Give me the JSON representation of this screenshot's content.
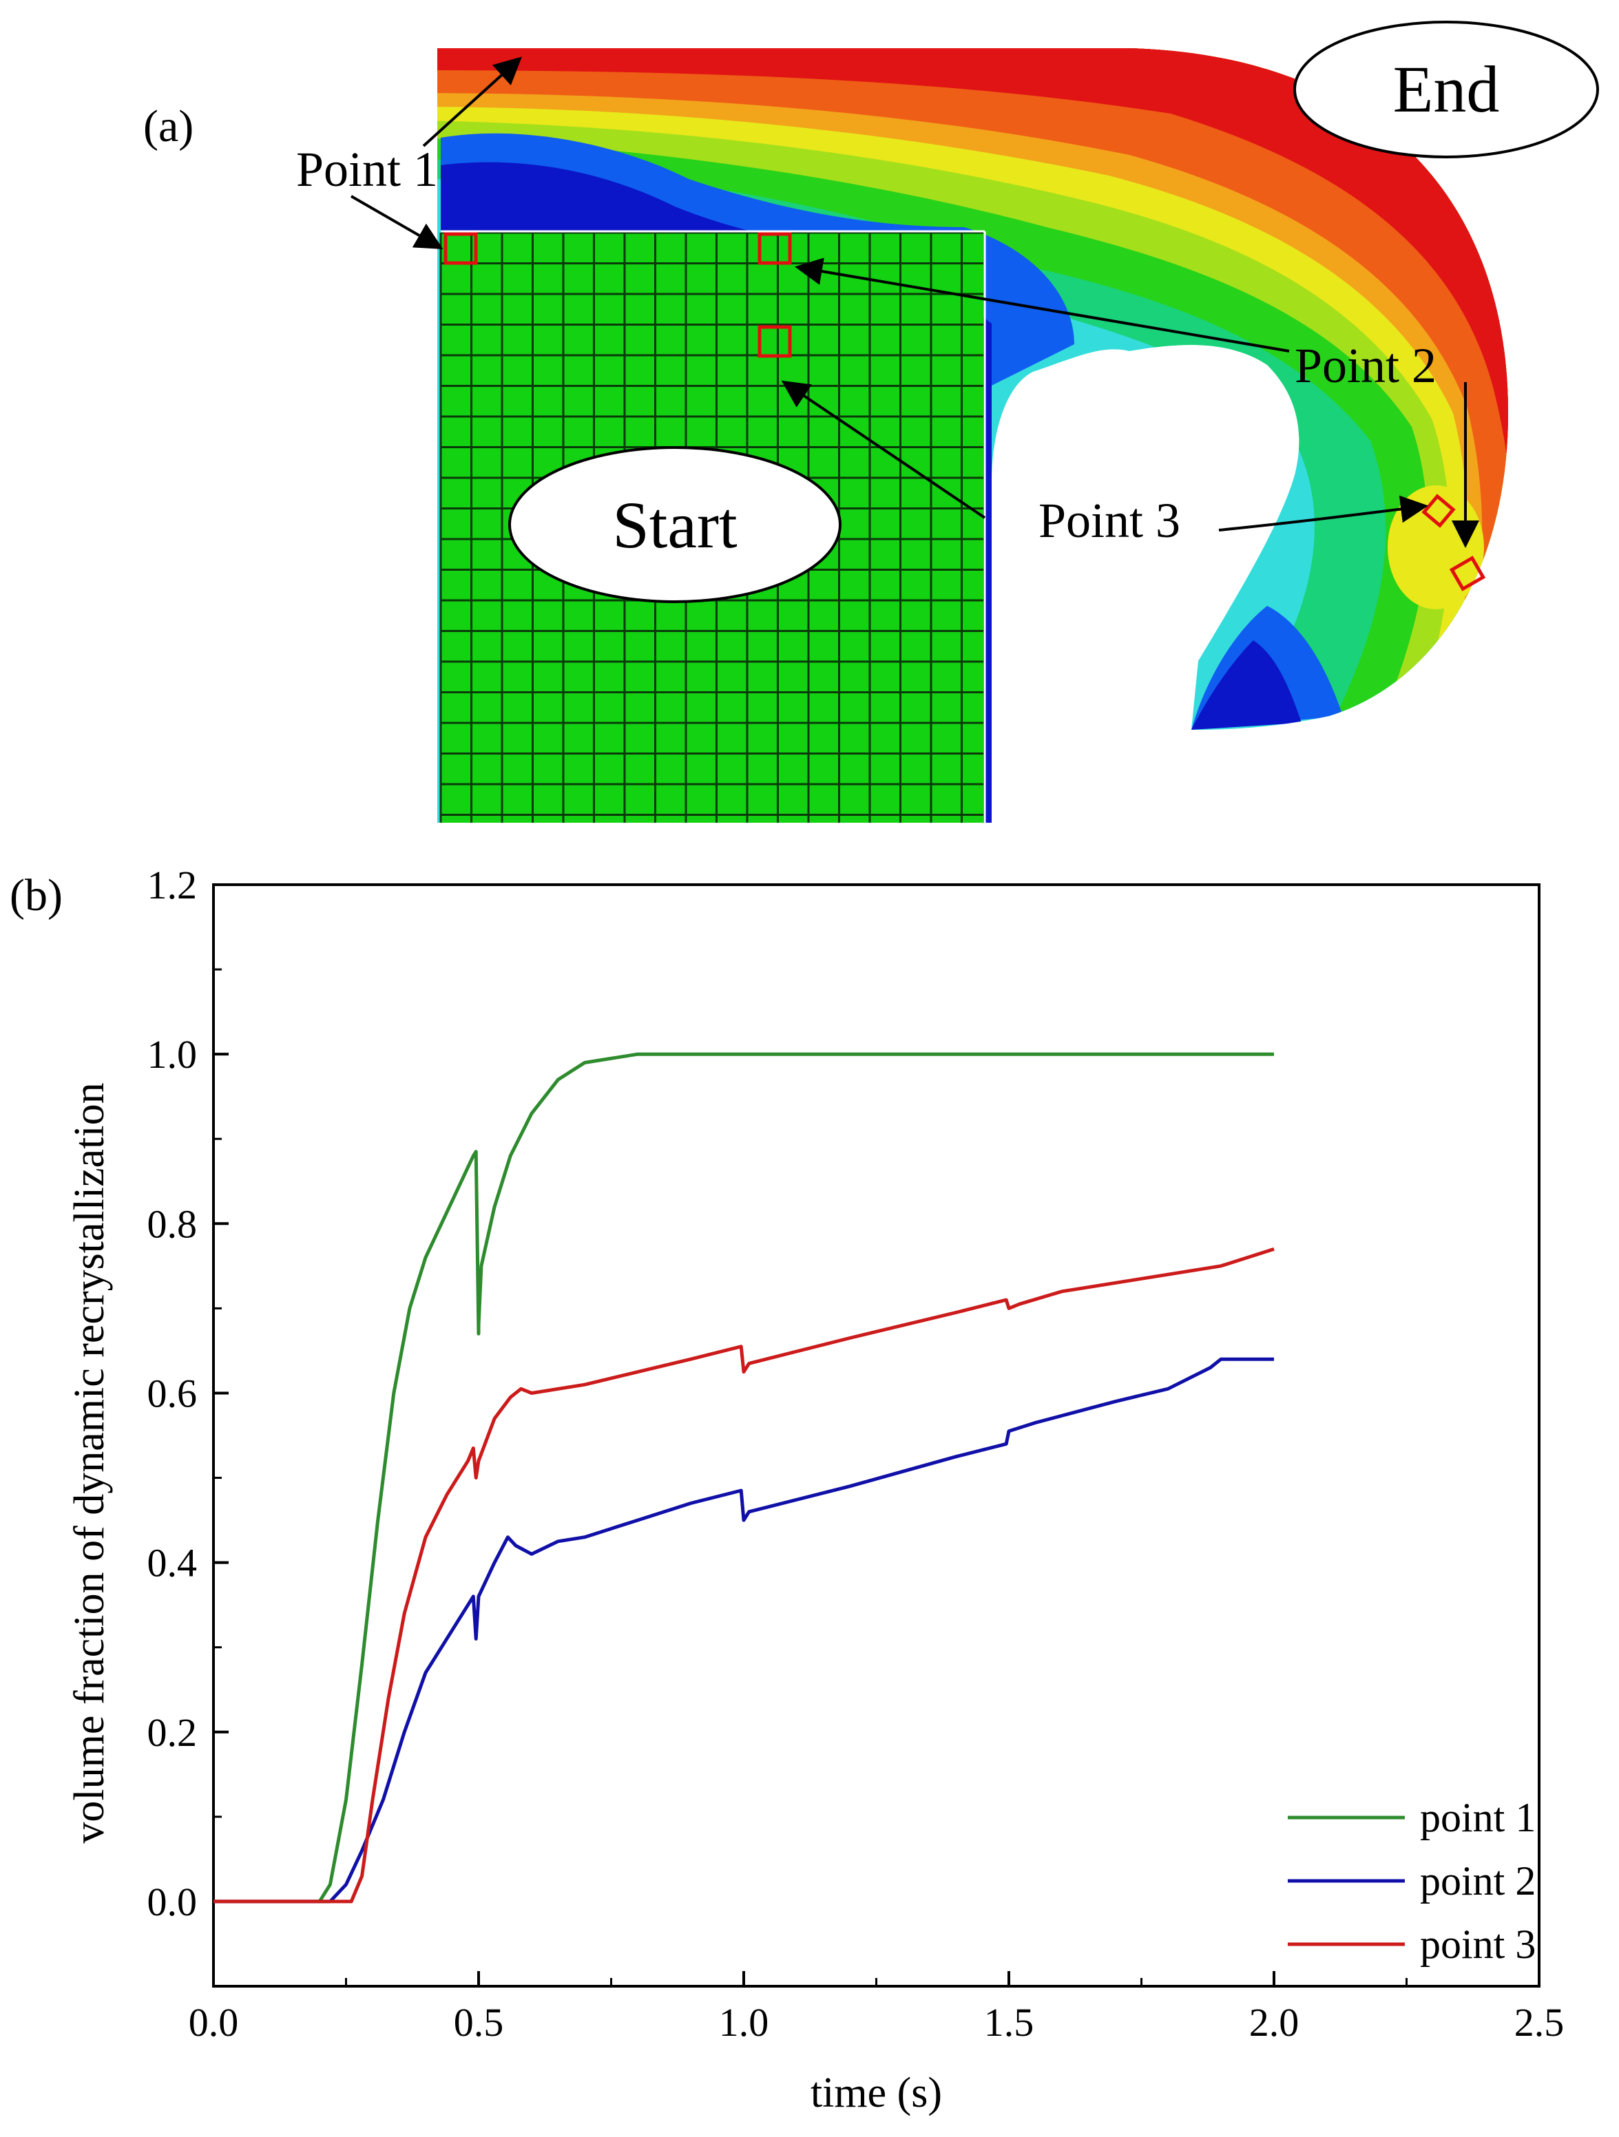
{
  "panel_a": {
    "label": "(a)",
    "start_label": "Start",
    "end_label": "End",
    "annotations": {
      "point1": "Point 1",
      "point2": "Point 2",
      "point3": "Point 3"
    },
    "colors": {
      "mesh_fill": "#12d212",
      "mesh_line": "#0a3a0a",
      "marker": "#e01010",
      "contour_scale": [
        "#0a16c8",
        "#0f5ef0",
        "#19b4f0",
        "#35dcdc",
        "#19d27a",
        "#27d21b",
        "#a3e01b",
        "#e8e81b",
        "#f2a41b",
        "#ee5e16",
        "#e01414"
      ]
    }
  },
  "panel_b": {
    "label": "(b)"
  },
  "chart_data": {
    "type": "line",
    "title": "",
    "xlabel": "time (s)",
    "ylabel": "volume fraction of dynamic recrystallization",
    "xlim": [
      0.0,
      2.5
    ],
    "ylim": [
      -0.1,
      1.2
    ],
    "xticks": [
      "0.0",
      "0.5",
      "1.0",
      "1.5",
      "2.0",
      "2.5"
    ],
    "yticks": [
      "0.0",
      "0.2",
      "0.4",
      "0.6",
      "0.8",
      "1.0",
      "1.2"
    ],
    "legend_position": "bottom-right",
    "grid": false,
    "series": [
      {
        "name": "point 1",
        "color": "#2e8b2e",
        "points": [
          [
            0.0,
            0.0
          ],
          [
            0.2,
            0.0
          ],
          [
            0.22,
            0.02
          ],
          [
            0.25,
            0.12
          ],
          [
            0.28,
            0.28
          ],
          [
            0.31,
            0.45
          ],
          [
            0.34,
            0.6
          ],
          [
            0.37,
            0.7
          ],
          [
            0.4,
            0.76
          ],
          [
            0.43,
            0.8
          ],
          [
            0.46,
            0.84
          ],
          [
            0.49,
            0.88
          ],
          [
            0.495,
            0.885
          ],
          [
            0.5,
            0.67
          ],
          [
            0.5,
            0.68
          ],
          [
            0.505,
            0.75
          ],
          [
            0.53,
            0.82
          ],
          [
            0.56,
            0.88
          ],
          [
            0.6,
            0.93
          ],
          [
            0.65,
            0.97
          ],
          [
            0.7,
            0.99
          ],
          [
            0.8,
            1.0
          ],
          [
            1.0,
            1.0
          ],
          [
            2.0,
            1.0
          ]
        ]
      },
      {
        "name": "point 2",
        "color": "#1010a8",
        "points": [
          [
            0.0,
            0.0
          ],
          [
            0.22,
            0.0
          ],
          [
            0.25,
            0.02
          ],
          [
            0.28,
            0.06
          ],
          [
            0.32,
            0.12
          ],
          [
            0.36,
            0.2
          ],
          [
            0.4,
            0.27
          ],
          [
            0.45,
            0.32
          ],
          [
            0.49,
            0.36
          ],
          [
            0.495,
            0.31
          ],
          [
            0.5,
            0.36
          ],
          [
            0.53,
            0.4
          ],
          [
            0.555,
            0.43
          ],
          [
            0.57,
            0.42
          ],
          [
            0.6,
            0.41
          ],
          [
            0.65,
            0.425
          ],
          [
            0.7,
            0.43
          ],
          [
            0.8,
            0.45
          ],
          [
            0.9,
            0.47
          ],
          [
            0.995,
            0.485
          ],
          [
            1.0,
            0.45
          ],
          [
            1.01,
            0.46
          ],
          [
            1.2,
            0.49
          ],
          [
            1.4,
            0.525
          ],
          [
            1.495,
            0.54
          ],
          [
            1.5,
            0.555
          ],
          [
            1.55,
            0.565
          ],
          [
            1.7,
            0.59
          ],
          [
            1.8,
            0.605
          ],
          [
            1.88,
            0.63
          ],
          [
            1.9,
            0.64
          ],
          [
            2.0,
            0.64
          ]
        ]
      },
      {
        "name": "point 3",
        "color": "#cc1b1b",
        "points": [
          [
            0.0,
            0.0
          ],
          [
            0.26,
            0.0
          ],
          [
            0.28,
            0.03
          ],
          [
            0.3,
            0.12
          ],
          [
            0.33,
            0.24
          ],
          [
            0.36,
            0.34
          ],
          [
            0.4,
            0.43
          ],
          [
            0.44,
            0.48
          ],
          [
            0.48,
            0.52
          ],
          [
            0.49,
            0.535
          ],
          [
            0.495,
            0.5
          ],
          [
            0.5,
            0.52
          ],
          [
            0.53,
            0.57
          ],
          [
            0.56,
            0.595
          ],
          [
            0.58,
            0.605
          ],
          [
            0.6,
            0.6
          ],
          [
            0.7,
            0.61
          ],
          [
            0.8,
            0.625
          ],
          [
            0.9,
            0.64
          ],
          [
            0.995,
            0.655
          ],
          [
            1.0,
            0.625
          ],
          [
            1.01,
            0.635
          ],
          [
            1.2,
            0.665
          ],
          [
            1.4,
            0.695
          ],
          [
            1.495,
            0.71
          ],
          [
            1.5,
            0.7
          ],
          [
            1.52,
            0.705
          ],
          [
            1.6,
            0.72
          ],
          [
            1.8,
            0.74
          ],
          [
            1.9,
            0.75
          ],
          [
            2.0,
            0.77
          ]
        ]
      }
    ]
  }
}
